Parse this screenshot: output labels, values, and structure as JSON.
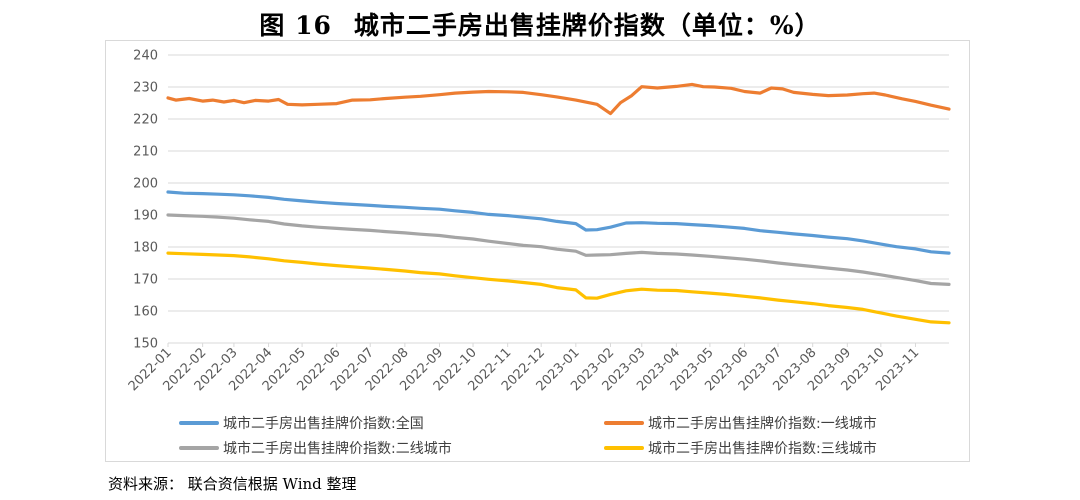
{
  "figure": {
    "title_num": "图 16",
    "title_text": "城市二手房出售挂牌价指数（单位：%）",
    "source": "资料来源：  联合资信根据 Wind 整理"
  },
  "colors": {
    "全国": "#5b9bd5",
    "一线城市": "#ed7d31",
    "二线城市": "#a5a5a5",
    "三线城市": "#ffc000",
    "grid": "#d9d9d9"
  },
  "chart_data": {
    "type": "line",
    "title": "城市二手房出售挂牌价指数（单位：%）",
    "xlabel": "",
    "ylabel": "",
    "ylim": [
      150,
      240
    ],
    "yticks": [
      150,
      160,
      170,
      180,
      190,
      200,
      210,
      220,
      230,
      240
    ],
    "grid": "horizontal",
    "legend_position": "bottom",
    "x_tick_labels": [
      "2022-01",
      "2022-02",
      "2022-03",
      "2022-04",
      "2022-05",
      "2022-06",
      "2022-07",
      "2022-08",
      "2022-09",
      "2022-10",
      "2022-11",
      "2022-12",
      "2023-01",
      "2023-02",
      "2023-03",
      "2023-04",
      "2023-05",
      "2023-06",
      "2023-07",
      "2023-08",
      "2023-09",
      "2023-10",
      "2023-11"
    ],
    "x_domain": [
      "2022-01-01",
      "2023-12-01"
    ],
    "series": [
      {
        "name": "城市二手房出售挂牌价指数:全国",
        "key": "全国",
        "points": [
          [
            "2022-01-01",
            197.2
          ],
          [
            "2022-01-15",
            196.8
          ],
          [
            "2022-02-01",
            196.7
          ],
          [
            "2022-02-15",
            196.5
          ],
          [
            "2022-03-01",
            196.3
          ],
          [
            "2022-03-15",
            196.0
          ],
          [
            "2022-04-01",
            195.5
          ],
          [
            "2022-04-15",
            194.9
          ],
          [
            "2022-05-01",
            194.4
          ],
          [
            "2022-05-15",
            194.0
          ],
          [
            "2022-06-01",
            193.6
          ],
          [
            "2022-06-15",
            193.3
          ],
          [
            "2022-07-01",
            193.0
          ],
          [
            "2022-07-15",
            192.7
          ],
          [
            "2022-08-01",
            192.4
          ],
          [
            "2022-08-15",
            192.1
          ],
          [
            "2022-09-01",
            191.8
          ],
          [
            "2022-09-15",
            191.3
          ],
          [
            "2022-10-01",
            190.8
          ],
          [
            "2022-10-15",
            190.2
          ],
          [
            "2022-11-01",
            189.8
          ],
          [
            "2022-11-15",
            189.3
          ],
          [
            "2022-12-01",
            188.8
          ],
          [
            "2022-12-15",
            188.0
          ],
          [
            "2023-01-01",
            187.3
          ],
          [
            "2023-01-10",
            185.3
          ],
          [
            "2023-01-20",
            185.4
          ],
          [
            "2023-02-01",
            186.2
          ],
          [
            "2023-02-15",
            187.5
          ],
          [
            "2023-03-01",
            187.6
          ],
          [
            "2023-03-15",
            187.4
          ],
          [
            "2023-04-01",
            187.3
          ],
          [
            "2023-04-15",
            187.0
          ],
          [
            "2023-05-01",
            186.7
          ],
          [
            "2023-05-15",
            186.3
          ],
          [
            "2023-06-01",
            185.8
          ],
          [
            "2023-06-15",
            185.1
          ],
          [
            "2023-07-01",
            184.6
          ],
          [
            "2023-07-15",
            184.1
          ],
          [
            "2023-08-01",
            183.6
          ],
          [
            "2023-08-15",
            183.1
          ],
          [
            "2023-09-01",
            182.6
          ],
          [
            "2023-09-15",
            181.9
          ],
          [
            "2023-10-01",
            180.9
          ],
          [
            "2023-10-15",
            180.1
          ],
          [
            "2023-11-01",
            179.4
          ],
          [
            "2023-11-15",
            178.5
          ],
          [
            "2023-12-01",
            178.1
          ]
        ]
      },
      {
        "name": "城市二手房出售挂牌价指数:一线城市",
        "key": "一线城市",
        "points": [
          [
            "2022-01-01",
            226.6
          ],
          [
            "2022-01-08",
            225.9
          ],
          [
            "2022-01-20",
            226.4
          ],
          [
            "2022-02-01",
            225.6
          ],
          [
            "2022-02-10",
            225.9
          ],
          [
            "2022-02-20",
            225.3
          ],
          [
            "2022-03-01",
            225.8
          ],
          [
            "2022-03-10",
            225.1
          ],
          [
            "2022-03-20",
            225.8
          ],
          [
            "2022-04-01",
            225.6
          ],
          [
            "2022-04-10",
            226.1
          ],
          [
            "2022-04-18",
            224.6
          ],
          [
            "2022-05-01",
            224.4
          ],
          [
            "2022-05-15",
            224.6
          ],
          [
            "2022-06-01",
            224.8
          ],
          [
            "2022-06-15",
            225.9
          ],
          [
            "2022-07-01",
            226.0
          ],
          [
            "2022-07-15",
            226.4
          ],
          [
            "2022-08-01",
            226.8
          ],
          [
            "2022-08-15",
            227.1
          ],
          [
            "2022-09-01",
            227.6
          ],
          [
            "2022-09-15",
            228.1
          ],
          [
            "2022-10-01",
            228.4
          ],
          [
            "2022-10-15",
            228.6
          ],
          [
            "2022-11-01",
            228.5
          ],
          [
            "2022-11-15",
            228.3
          ],
          [
            "2022-12-01",
            227.6
          ],
          [
            "2022-12-15",
            226.9
          ],
          [
            "2023-01-01",
            225.9
          ],
          [
            "2023-01-20",
            224.6
          ],
          [
            "2023-02-01",
            221.7
          ],
          [
            "2023-02-10",
            225.1
          ],
          [
            "2023-02-20",
            227.3
          ],
          [
            "2023-03-01",
            230.1
          ],
          [
            "2023-03-15",
            229.7
          ],
          [
            "2023-04-01",
            230.2
          ],
          [
            "2023-04-15",
            230.8
          ],
          [
            "2023-04-25",
            230.1
          ],
          [
            "2023-05-05",
            230.0
          ],
          [
            "2023-05-20",
            229.6
          ],
          [
            "2023-06-01",
            228.6
          ],
          [
            "2023-06-15",
            228.1
          ],
          [
            "2023-06-25",
            229.7
          ],
          [
            "2023-07-05",
            229.4
          ],
          [
            "2023-07-15",
            228.3
          ],
          [
            "2023-08-01",
            227.7
          ],
          [
            "2023-08-15",
            227.3
          ],
          [
            "2023-09-01",
            227.5
          ],
          [
            "2023-09-15",
            227.9
          ],
          [
            "2023-09-25",
            228.1
          ],
          [
            "2023-10-05",
            227.5
          ],
          [
            "2023-10-20",
            226.3
          ],
          [
            "2023-11-01",
            225.5
          ],
          [
            "2023-11-15",
            224.3
          ],
          [
            "2023-12-01",
            223.1
          ]
        ]
      },
      {
        "name": "城市二手房出售挂牌价指数:二线城市",
        "key": "二线城市",
        "points": [
          [
            "2022-01-01",
            190.0
          ],
          [
            "2022-01-15",
            189.8
          ],
          [
            "2022-02-01",
            189.6
          ],
          [
            "2022-02-15",
            189.3
          ],
          [
            "2022-03-01",
            189.0
          ],
          [
            "2022-03-15",
            188.5
          ],
          [
            "2022-04-01",
            188.0
          ],
          [
            "2022-04-15",
            187.2
          ],
          [
            "2022-05-01",
            186.6
          ],
          [
            "2022-05-15",
            186.2
          ],
          [
            "2022-06-01",
            185.8
          ],
          [
            "2022-06-15",
            185.5
          ],
          [
            "2022-07-01",
            185.2
          ],
          [
            "2022-07-15",
            184.8
          ],
          [
            "2022-08-01",
            184.4
          ],
          [
            "2022-08-15",
            184.0
          ],
          [
            "2022-09-01",
            183.6
          ],
          [
            "2022-09-15",
            183.0
          ],
          [
            "2022-10-01",
            182.5
          ],
          [
            "2022-10-15",
            181.8
          ],
          [
            "2022-11-01",
            181.1
          ],
          [
            "2022-11-15",
            180.5
          ],
          [
            "2022-12-01",
            180.1
          ],
          [
            "2022-12-15",
            179.3
          ],
          [
            "2023-01-01",
            178.7
          ],
          [
            "2023-01-10",
            177.4
          ],
          [
            "2023-01-20",
            177.5
          ],
          [
            "2023-02-01",
            177.6
          ],
          [
            "2023-02-15",
            178.0
          ],
          [
            "2023-03-01",
            178.3
          ],
          [
            "2023-03-15",
            178.0
          ],
          [
            "2023-04-01",
            177.8
          ],
          [
            "2023-04-15",
            177.5
          ],
          [
            "2023-05-01",
            177.1
          ],
          [
            "2023-05-15",
            176.7
          ],
          [
            "2023-06-01",
            176.2
          ],
          [
            "2023-06-15",
            175.7
          ],
          [
            "2023-07-01",
            175.0
          ],
          [
            "2023-07-15",
            174.5
          ],
          [
            "2023-08-01",
            173.9
          ],
          [
            "2023-08-15",
            173.4
          ],
          [
            "2023-09-01",
            172.8
          ],
          [
            "2023-09-15",
            172.2
          ],
          [
            "2023-10-01",
            171.3
          ],
          [
            "2023-10-15",
            170.5
          ],
          [
            "2023-11-01",
            169.5
          ],
          [
            "2023-11-15",
            168.6
          ],
          [
            "2023-12-01",
            168.3
          ]
        ]
      },
      {
        "name": "城市二手房出售挂牌价指数:三线城市",
        "key": "三线城市",
        "points": [
          [
            "2022-01-01",
            178.1
          ],
          [
            "2022-01-15",
            177.9
          ],
          [
            "2022-02-01",
            177.7
          ],
          [
            "2022-02-15",
            177.5
          ],
          [
            "2022-03-01",
            177.3
          ],
          [
            "2022-03-15",
            176.9
          ],
          [
            "2022-04-01",
            176.3
          ],
          [
            "2022-04-15",
            175.7
          ],
          [
            "2022-05-01",
            175.2
          ],
          [
            "2022-05-15",
            174.7
          ],
          [
            "2022-06-01",
            174.2
          ],
          [
            "2022-06-15",
            173.8
          ],
          [
            "2022-07-01",
            173.4
          ],
          [
            "2022-07-15",
            173.0
          ],
          [
            "2022-08-01",
            172.5
          ],
          [
            "2022-08-15",
            172.0
          ],
          [
            "2022-09-01",
            171.6
          ],
          [
            "2022-09-15",
            171.0
          ],
          [
            "2022-10-01",
            170.4
          ],
          [
            "2022-10-15",
            169.9
          ],
          [
            "2022-11-01",
            169.4
          ],
          [
            "2022-11-15",
            168.9
          ],
          [
            "2022-12-01",
            168.3
          ],
          [
            "2022-12-15",
            167.3
          ],
          [
            "2023-01-01",
            166.6
          ],
          [
            "2023-01-10",
            164.1
          ],
          [
            "2023-01-20",
            164.0
          ],
          [
            "2023-02-01",
            165.2
          ],
          [
            "2023-02-15",
            166.3
          ],
          [
            "2023-03-01",
            166.8
          ],
          [
            "2023-03-15",
            166.5
          ],
          [
            "2023-04-01",
            166.4
          ],
          [
            "2023-04-15",
            166.0
          ],
          [
            "2023-05-01",
            165.6
          ],
          [
            "2023-05-15",
            165.2
          ],
          [
            "2023-06-01",
            164.6
          ],
          [
            "2023-06-15",
            164.1
          ],
          [
            "2023-07-01",
            163.4
          ],
          [
            "2023-07-15",
            162.9
          ],
          [
            "2023-08-01",
            162.3
          ],
          [
            "2023-08-15",
            161.7
          ],
          [
            "2023-09-01",
            161.1
          ],
          [
            "2023-09-15",
            160.5
          ],
          [
            "2023-10-01",
            159.4
          ],
          [
            "2023-10-15",
            158.4
          ],
          [
            "2023-11-01",
            157.4
          ],
          [
            "2023-11-15",
            156.6
          ],
          [
            "2023-12-01",
            156.3
          ]
        ]
      }
    ]
  }
}
